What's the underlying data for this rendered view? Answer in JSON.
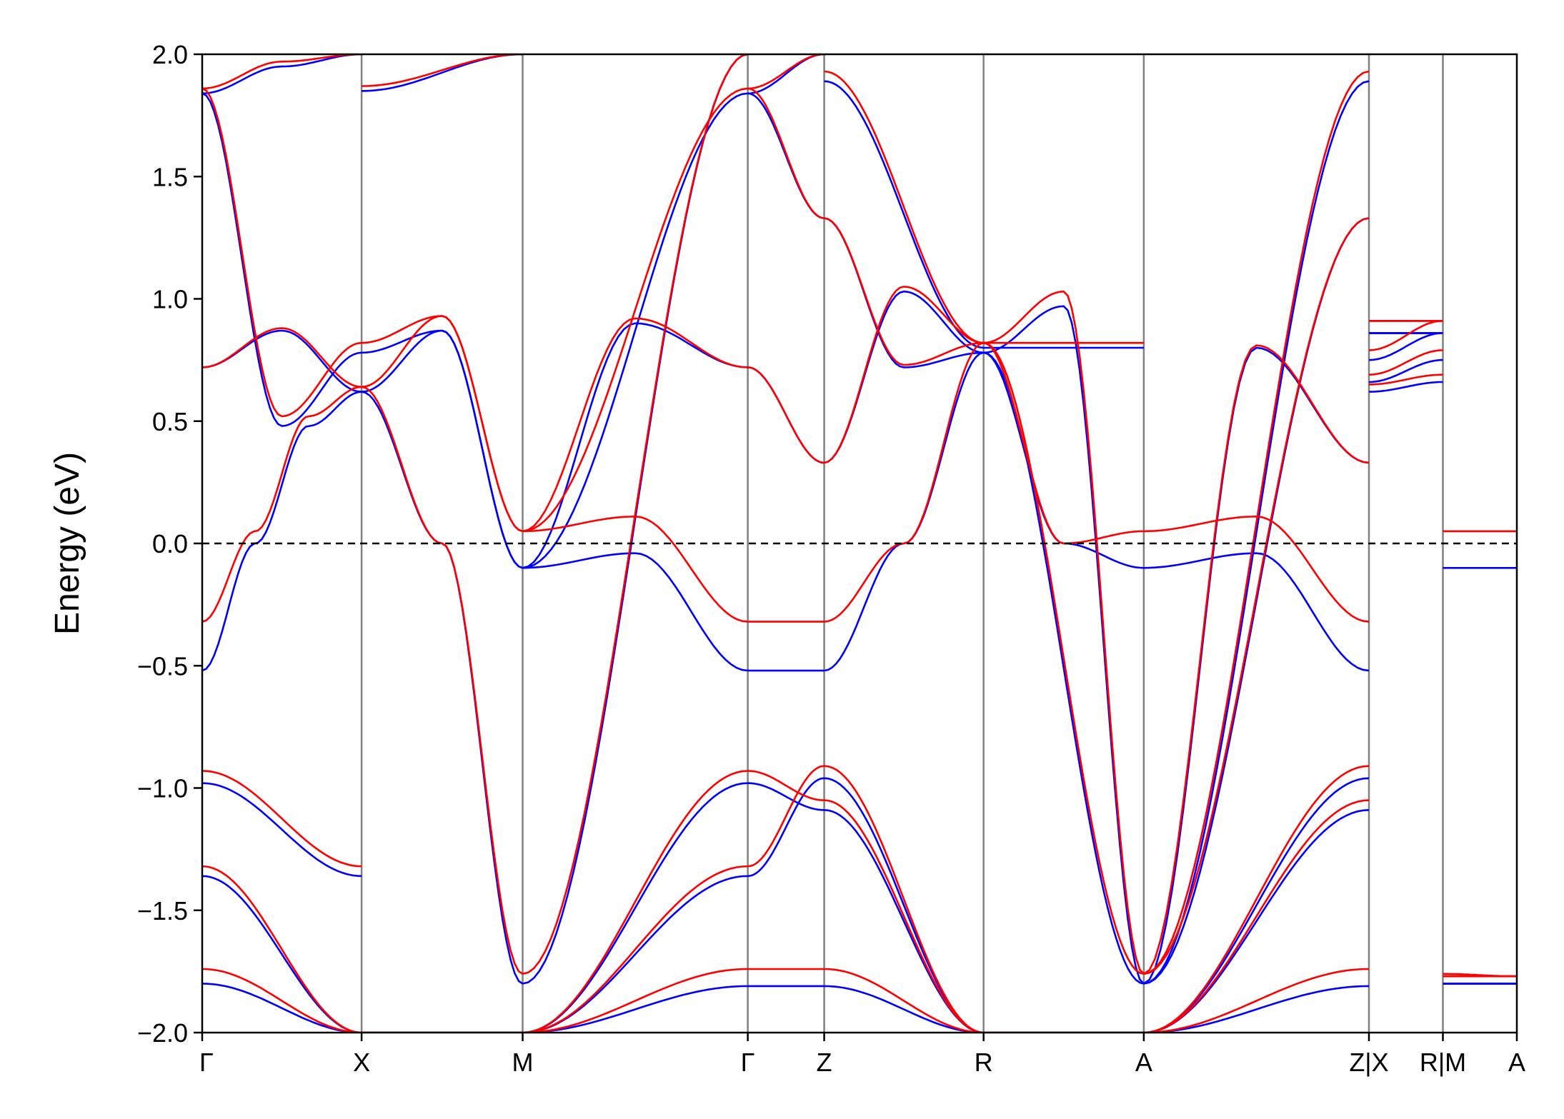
{
  "chart_data": {
    "type": "line",
    "title": "",
    "xlabel": "",
    "ylabel": "Energy (eV)",
    "ylim": [
      -2.0,
      2.0
    ],
    "x_range": [
      0,
      16.0
    ],
    "y_ticks": [
      "2.0",
      "1.5",
      "1.0",
      "0.5",
      "0.0",
      "−0.5",
      "−1.0",
      "−1.5",
      "−2.0"
    ],
    "y_tick_values": [
      2.0,
      1.5,
      1.0,
      0.5,
      0.0,
      -0.5,
      -1.0,
      -1.5,
      -2.0
    ],
    "kpoints": [
      {
        "label": "Γ",
        "x": 0
      },
      {
        "label": "X",
        "x": 1.94
      },
      {
        "label": "M",
        "x": 3.9
      },
      {
        "label": "Γ",
        "x": 6.64
      },
      {
        "label": "Z",
        "x": 7.57
      },
      {
        "label": "R",
        "x": 9.51
      },
      {
        "label": "A",
        "x": 11.46
      },
      {
        "label": "Z|X",
        "x": 14.2
      },
      {
        "label": "R|M",
        "x": 15.1
      },
      {
        "label": "A",
        "x": 16.0
      }
    ],
    "fermi_level": 0.0,
    "grid": false,
    "series_colors": [
      "#0000ff",
      "#ff0000"
    ],
    "segments": [
      {
        "x0": 0,
        "x1": 1.94
      },
      {
        "x0": 1.94,
        "x1": 3.9
      },
      {
        "x0": 3.9,
        "x1": 6.64
      },
      {
        "x0": 6.64,
        "x1": 7.57
      },
      {
        "x0": 7.57,
        "x1": 9.51
      },
      {
        "x0": 9.51,
        "x1": 11.46
      },
      {
        "x0": 11.46,
        "x1": 14.2
      },
      {
        "x0": 14.2,
        "x1": 15.1
      },
      {
        "x0": 15.1,
        "x1": 16.0
      }
    ],
    "series": [
      {
        "color": "#0000ff",
        "bands": [
          [
            [
              -0.52,
              0.0,
              0.48,
              0.62
            ],
            [
              0.62,
              0.0,
              -1.8
            ],
            [
              -0.1,
              -0.04,
              -0.52
            ],
            [
              -0.52,
              -0.52
            ],
            [
              -0.52,
              0.0,
              0.78
            ],
            [
              0.78,
              0.0,
              -0.1
            ],
            [
              -0.1,
              -0.04,
              -0.52
            ],
            [
              0.62,
              0.66
            ],
            [
              -0.1,
              -0.1
            ]
          ],
          [
            [
              0.72,
              0.87,
              0.62
            ],
            [
              0.62,
              0.87,
              -0.1
            ],
            [
              -0.1,
              0.9,
              0.72
            ],
            [
              0.72,
              0.33
            ],
            [
              0.33,
              1.03,
              0.78
            ],
            [
              0.78,
              0.97,
              -1.8
            ],
            [
              -1.8,
              0.8,
              0.33
            ],
            [
              0.66,
              0.75
            ],
            [
              -1.8,
              -1.8
            ]
          ],
          [
            [
              1.84,
              0.48,
              0.78
            ],
            [
              0.78,
              0.87,
              -0.1
            ],
            [
              -0.1,
              1.84
            ],
            [
              1.84,
              1.33
            ],
            [
              1.33,
              0.72,
              0.78
            ],
            [
              0.78,
              -1.8
            ],
            [
              -1.8,
              1.33
            ],
            [
              0.75,
              0.86
            ],
            [
              -1.8,
              -1.8
            ]
          ],
          [
            [
              1.84,
              1.95,
              2.0
            ],
            [
              1.85,
              2.0
            ],
            [
              -1.8,
              2.0
            ],
            [
              1.84,
              2.0
            ],
            [
              1.89,
              0.8
            ],
            [
              0.8,
              0.8
            ],
            [
              -1.8,
              1.89
            ],
            [
              0.86,
              0.86
            ],
            [
              -1.8,
              -1.8
            ]
          ],
          [
            [
              -0.98,
              -1.36
            ],
            [
              -2.0,
              -2.0
            ],
            [
              -2.0,
              -1.36
            ],
            [
              -1.36,
              -0.96
            ],
            [
              -0.96,
              -2.0
            ],
            [
              -2.0,
              -2.0
            ],
            [
              -2.0,
              -0.96
            ],
            [
              0.86,
              0.86
            ],
            [
              -1.8,
              -1.8
            ]
          ],
          [
            [
              -1.36,
              -2.0
            ],
            [
              -2.0,
              -2.0
            ],
            [
              -2.0,
              -0.98
            ],
            [
              -0.98,
              -1.09
            ],
            [
              -1.09,
              -2.0
            ],
            [
              -2.0,
              -2.0
            ],
            [
              -2.0,
              -1.09
            ],
            [
              0.86,
              0.86
            ],
            [
              -1.8,
              -1.8
            ]
          ],
          [
            [
              -1.8,
              -2.0
            ],
            [
              -2.0,
              -2.0
            ],
            [
              -2.0,
              -1.81
            ],
            [
              -1.81,
              -1.81
            ],
            [
              -1.81,
              -2.0
            ],
            [
              -2.0,
              -2.0
            ],
            [
              -2.0,
              -1.81
            ],
            [
              0.86,
              0.86
            ],
            [
              -1.8,
              -1.8
            ]
          ]
        ]
      },
      {
        "color": "#ff0000",
        "bands": [
          [
            [
              -0.32,
              0.05,
              0.52,
              0.64
            ],
            [
              0.64,
              0.0,
              -1.76
            ],
            [
              0.05,
              0.11,
              -0.32
            ],
            [
              -0.32,
              -0.32
            ],
            [
              -0.32,
              0.0,
              0.82
            ],
            [
              0.82,
              0.0,
              0.05
            ],
            [
              0.05,
              0.11,
              -0.32
            ],
            [
              0.65,
              0.69
            ],
            [
              0.05,
              0.05
            ]
          ],
          [
            [
              0.72,
              0.88,
              0.64
            ],
            [
              0.64,
              0.93,
              0.05
            ],
            [
              0.05,
              0.92,
              0.72
            ],
            [
              0.72,
              0.33
            ],
            [
              0.33,
              1.05,
              0.82
            ],
            [
              0.82,
              1.03,
              -1.76
            ],
            [
              -1.76,
              0.81,
              0.33
            ],
            [
              0.69,
              0.79
            ],
            [
              -1.76,
              -1.77
            ]
          ],
          [
            [
              1.86,
              0.52,
              0.82
            ],
            [
              0.82,
              0.93,
              0.05
            ],
            [
              0.05,
              1.86
            ],
            [
              1.86,
              1.33
            ],
            [
              1.33,
              0.73,
              0.82
            ],
            [
              0.82,
              -1.76
            ],
            [
              -1.76,
              1.33
            ],
            [
              0.79,
              0.91
            ],
            [
              -1.77,
              -1.77
            ]
          ],
          [
            [
              1.86,
              1.97,
              2.0
            ],
            [
              1.87,
              2.0
            ],
            [
              -1.76,
              2.0
            ],
            [
              1.86,
              2.0
            ],
            [
              1.93,
              0.82
            ],
            [
              0.82,
              0.82
            ],
            [
              -1.76,
              1.93
            ],
            [
              0.91,
              0.91
            ],
            [
              -1.77,
              -1.77
            ]
          ],
          [
            [
              -0.93,
              -1.32
            ],
            [
              -2.0,
              -2.0
            ],
            [
              -2.0,
              -1.32
            ],
            [
              -1.32,
              -0.91
            ],
            [
              -0.91,
              -2.0
            ],
            [
              -2.0,
              -2.0
            ],
            [
              -2.0,
              -0.91
            ],
            [
              0.91,
              0.91
            ],
            [
              -1.77,
              -1.77
            ]
          ],
          [
            [
              -1.32,
              -2.0
            ],
            [
              -2.0,
              -2.0
            ],
            [
              -2.0,
              -0.93
            ],
            [
              -0.93,
              -1.05
            ],
            [
              -1.05,
              -2.0
            ],
            [
              -2.0,
              -2.0
            ],
            [
              -2.0,
              -1.05
            ],
            [
              0.91,
              0.91
            ],
            [
              -1.77,
              -1.77
            ]
          ],
          [
            [
              -1.74,
              -2.0
            ],
            [
              -2.0,
              -2.0
            ],
            [
              -2.0,
              -1.74
            ],
            [
              -1.74,
              -1.74
            ],
            [
              -1.74,
              -2.0
            ],
            [
              -2.0,
              -2.0
            ],
            [
              -2.0,
              -1.74
            ],
            [
              0.91,
              0.91
            ],
            [
              -1.77,
              -1.77
            ]
          ]
        ]
      }
    ]
  }
}
